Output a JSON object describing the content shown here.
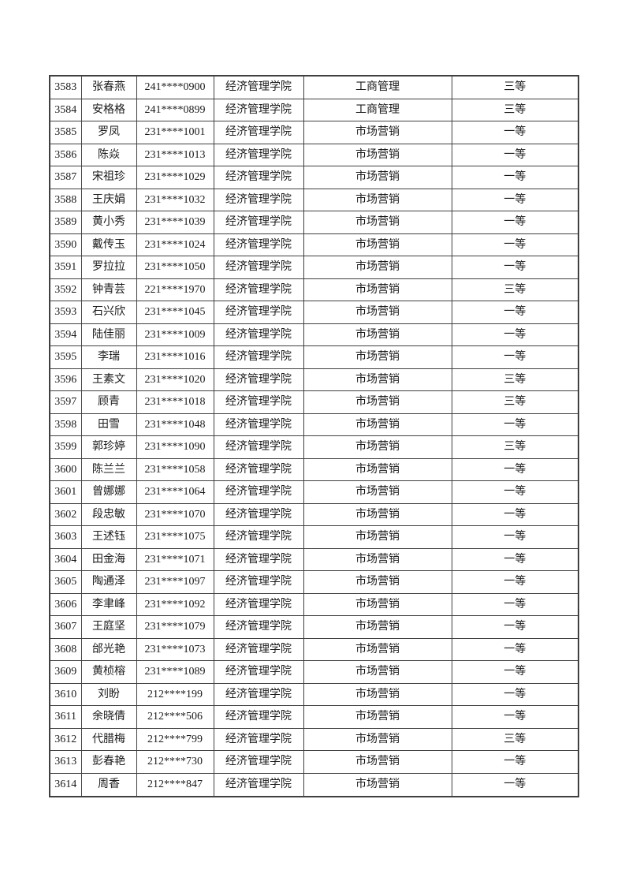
{
  "colors": {
    "page_background": "#ffffff",
    "text": "#1a1a1a",
    "border": "#404040"
  },
  "table": {
    "column_names": [
      "serial-number",
      "student-name",
      "student-id",
      "college",
      "major",
      "award-level"
    ],
    "rows": [
      [
        "3583",
        "张春燕",
        "241****0900",
        "经济管理学院",
        "工商管理",
        "三等"
      ],
      [
        "3584",
        "安格格",
        "241****0899",
        "经济管理学院",
        "工商管理",
        "三等"
      ],
      [
        "3585",
        "罗凤",
        "231****1001",
        "经济管理学院",
        "市场营销",
        "一等"
      ],
      [
        "3586",
        "陈焱",
        "231****1013",
        "经济管理学院",
        "市场营销",
        "一等"
      ],
      [
        "3587",
        "宋祖珍",
        "231****1029",
        "经济管理学院",
        "市场营销",
        "一等"
      ],
      [
        "3588",
        "王庆娟",
        "231****1032",
        "经济管理学院",
        "市场营销",
        "一等"
      ],
      [
        "3589",
        "黄小秀",
        "231****1039",
        "经济管理学院",
        "市场营销",
        "一等"
      ],
      [
        "3590",
        "戴传玉",
        "231****1024",
        "经济管理学院",
        "市场营销",
        "一等"
      ],
      [
        "3591",
        "罗拉拉",
        "231****1050",
        "经济管理学院",
        "市场营销",
        "一等"
      ],
      [
        "3592",
        "钟青芸",
        "221****1970",
        "经济管理学院",
        "市场营销",
        "三等"
      ],
      [
        "3593",
        "石兴欣",
        "231****1045",
        "经济管理学院",
        "市场营销",
        "一等"
      ],
      [
        "3594",
        "陆佳丽",
        "231****1009",
        "经济管理学院",
        "市场营销",
        "一等"
      ],
      [
        "3595",
        "李瑞",
        "231****1016",
        "经济管理学院",
        "市场营销",
        "一等"
      ],
      [
        "3596",
        "王素文",
        "231****1020",
        "经济管理学院",
        "市场营销",
        "三等"
      ],
      [
        "3597",
        "顾青",
        "231****1018",
        "经济管理学院",
        "市场营销",
        "三等"
      ],
      [
        "3598",
        "田雪",
        "231****1048",
        "经济管理学院",
        "市场营销",
        "一等"
      ],
      [
        "3599",
        "郭珍婷",
        "231****1090",
        "经济管理学院",
        "市场营销",
        "三等"
      ],
      [
        "3600",
        "陈兰兰",
        "231****1058",
        "经济管理学院",
        "市场营销",
        "一等"
      ],
      [
        "3601",
        "曾娜娜",
        "231****1064",
        "经济管理学院",
        "市场营销",
        "一等"
      ],
      [
        "3602",
        "段忠敏",
        "231****1070",
        "经济管理学院",
        "市场营销",
        "一等"
      ],
      [
        "3603",
        "王述钰",
        "231****1075",
        "经济管理学院",
        "市场营销",
        "一等"
      ],
      [
        "3604",
        "田金海",
        "231****1071",
        "经济管理学院",
        "市场营销",
        "一等"
      ],
      [
        "3605",
        "陶通泽",
        "231****1097",
        "经济管理学院",
        "市场营销",
        "一等"
      ],
      [
        "3606",
        "李聿峰",
        "231****1092",
        "经济管理学院",
        "市场营销",
        "一等"
      ],
      [
        "3607",
        "王庭坚",
        "231****1079",
        "经济管理学院",
        "市场营销",
        "一等"
      ],
      [
        "3608",
        "邰光艳",
        "231****1073",
        "经济管理学院",
        "市场营销",
        "一等"
      ],
      [
        "3609",
        "黄桢榕",
        "231****1089",
        "经济管理学院",
        "市场营销",
        "一等"
      ],
      [
        "3610",
        "刘盼",
        "212****199",
        "经济管理学院",
        "市场营销",
        "一等"
      ],
      [
        "3611",
        "余晓倩",
        "212****506",
        "经济管理学院",
        "市场营销",
        "一等"
      ],
      [
        "3612",
        "代腊梅",
        "212****799",
        "经济管理学院",
        "市场营销",
        "三等"
      ],
      [
        "3613",
        "彭春艳",
        "212****730",
        "经济管理学院",
        "市场营销",
        "一等"
      ],
      [
        "3614",
        "周香",
        "212****847",
        "经济管理学院",
        "市场营销",
        "一等"
      ]
    ]
  }
}
